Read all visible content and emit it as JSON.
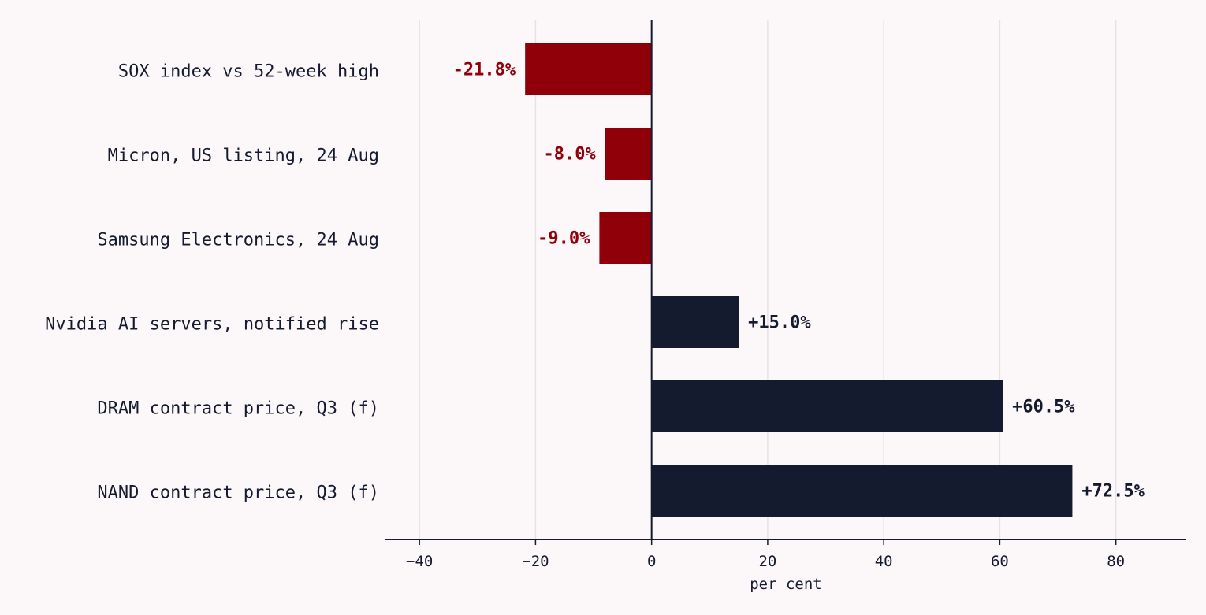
{
  "chart_data": {
    "type": "bar",
    "orientation": "horizontal",
    "categories": [
      "SOX index vs 52-week high",
      "Micron, US listing, 24 Aug",
      "Samsung Electronics, 24 Aug",
      "Nvidia AI servers, notified rise",
      "DRAM contract price, Q3 (f)",
      "NAND contract price, Q3 (f)"
    ],
    "values": [
      -21.8,
      -8.0,
      -9.0,
      15.0,
      60.5,
      72.5
    ],
    "value_labels": [
      "-21.8%",
      "-8.0%",
      "-9.0%",
      "+15.0%",
      "+60.5%",
      "+72.5%"
    ],
    "title": "",
    "xlabel": "per cent",
    "ylabel": "",
    "xlim": [
      -46,
      92
    ],
    "xticks": [
      -40,
      -20,
      0,
      20,
      40,
      60,
      80
    ],
    "xtick_labels": [
      "−40",
      "−20",
      "0",
      "20",
      "40",
      "60",
      "80"
    ],
    "grid": "vertical",
    "legend": "none",
    "colors": {
      "negative": "#8f0009",
      "positive": "#151b2e",
      "grid": "#e6e2e4",
      "axis": "#151b2e",
      "background": "#fcf8f9"
    }
  }
}
